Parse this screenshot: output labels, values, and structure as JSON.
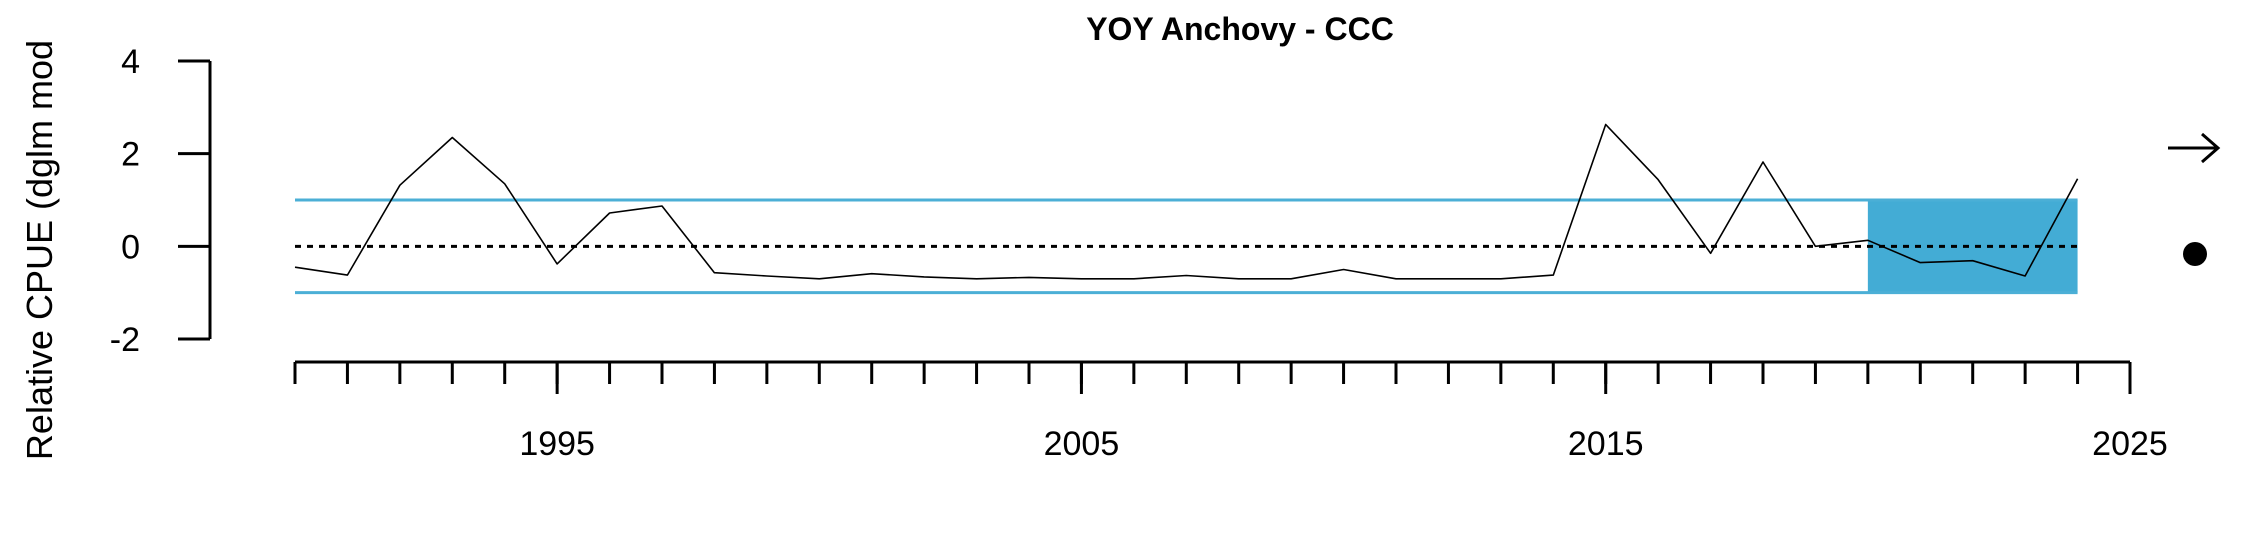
{
  "chart_data": {
    "type": "line",
    "title": "YOY Anchovy - CCC",
    "ylabel": "Relative CPUE (dglm mod",
    "xlabel": "",
    "xlim": [
      1990,
      2025
    ],
    "ylim": [
      -2,
      4
    ],
    "y_ticks": [
      -2,
      0,
      2,
      4
    ],
    "y_tick_labels": [
      "-2",
      "0",
      "2",
      "4"
    ],
    "x_major_ticks": [
      1995,
      2005,
      2015,
      2025
    ],
    "x_tick_labels": [
      "1995",
      "2005",
      "2015",
      "2025"
    ],
    "x_minor_ticks": [
      1990,
      1991,
      1992,
      1993,
      1994,
      1995,
      1996,
      1997,
      1998,
      1999,
      2000,
      2001,
      2002,
      2003,
      2004,
      2005,
      2006,
      2007,
      2008,
      2009,
      2010,
      2011,
      2012,
      2013,
      2014,
      2015,
      2016,
      2017,
      2018,
      2019,
      2020,
      2021,
      2022,
      2023,
      2024,
      2025
    ],
    "grid": false,
    "mean": 0,
    "upper_sd": 1,
    "lower_sd": -1,
    "highlight_x": [
      2020,
      2024
    ],
    "colors": {
      "sd_line": "#4bafd6",
      "highlight": "#43acd5",
      "series": "#000000",
      "mean": "#000000"
    },
    "series": [
      {
        "x": [
          1990,
          1991,
          1992,
          1993,
          1994,
          1995,
          1996,
          1997,
          1998,
          1999,
          2000,
          2001,
          2002,
          2003,
          2004,
          2005,
          2006,
          2007,
          2008,
          2009,
          2010,
          2011,
          2012,
          2013,
          2014,
          2015,
          2016,
          2017,
          2018,
          2019,
          2020,
          2021,
          2022,
          2023,
          2024
        ],
        "values": [
          -0.45,
          -0.62,
          1.32,
          2.35,
          1.35,
          -0.38,
          0.72,
          0.87,
          -0.57,
          -0.64,
          -0.7,
          -0.59,
          -0.66,
          -0.7,
          -0.67,
          -0.7,
          -0.7,
          -0.63,
          -0.7,
          -0.7,
          -0.5,
          -0.7,
          -0.7,
          -0.7,
          -0.62,
          2.63,
          1.44,
          -0.15,
          1.82,
          0.0,
          0.13,
          -0.35,
          -0.31,
          -0.64,
          1.46
        ]
      }
    ],
    "side_symbols": {
      "trend": "arrow-right-icon",
      "status": "dot-icon"
    }
  }
}
